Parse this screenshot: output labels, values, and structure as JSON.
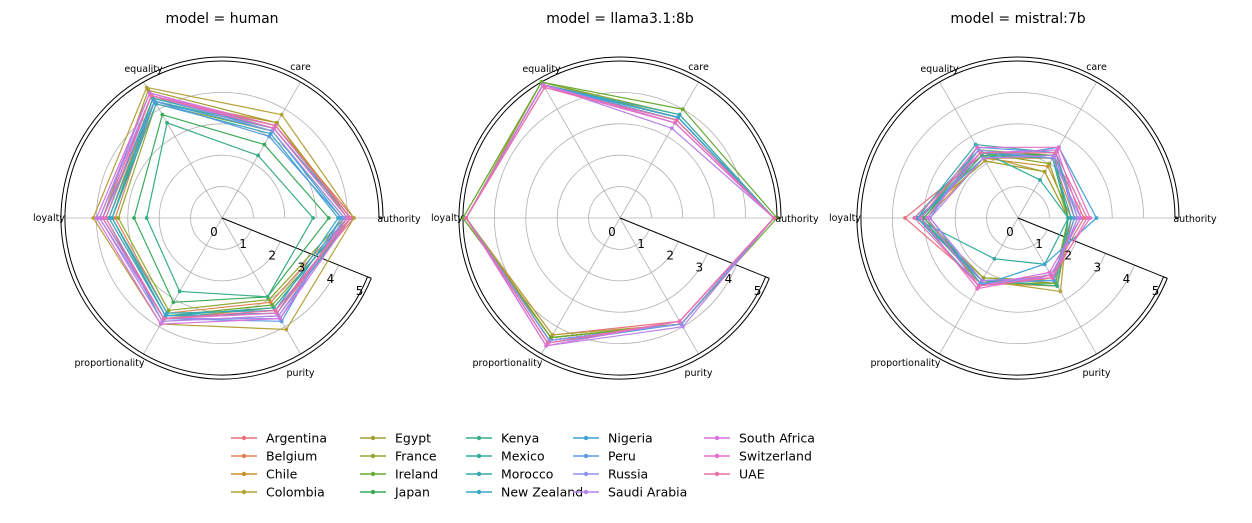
{
  "chart_data": {
    "type": "radar",
    "axes": [
      "authority",
      "care",
      "equality",
      "loyalty",
      "proportionality",
      "purity"
    ],
    "rlim": [
      0,
      5
    ],
    "rticks": [
      "0",
      "1",
      "2",
      "3",
      "4",
      "5"
    ],
    "grid": true,
    "legend_position": "bottom",
    "countries": [
      "Argentina",
      "Belgium",
      "Chile",
      "Colombia",
      "Egypt",
      "France",
      "Ireland",
      "Japan",
      "Kenya",
      "Mexico",
      "Morocco",
      "New Zealand",
      "Nigeria",
      "Peru",
      "Russia",
      "Saudi Arabia",
      "South Africa",
      "Switzerland",
      "UAE"
    ],
    "colors": [
      "#e8727c",
      "#e4814f",
      "#c9902d",
      "#b5a03a",
      "#a39d2e",
      "#8fa830",
      "#6aaa32",
      "#3aab5a",
      "#36ad85",
      "#35ab9d",
      "#37aab0",
      "#38a8c2",
      "#3aa3d4",
      "#5b9be5",
      "#8f92e9",
      "#b882e8",
      "#d872df",
      "#e56fc8",
      "#ea70a9"
    ],
    "panels": [
      {
        "title": "model = human",
        "series": [
          {
            "name": "Argentina",
            "values": [
              4.2,
              3.4,
              4.5,
              3.8,
              3.7,
              3.4
            ]
          },
          {
            "name": "Belgium",
            "values": [
              4.0,
              3.3,
              4.3,
              3.4,
              3.5,
              3.1
            ]
          },
          {
            "name": "Chile",
            "values": [
              4.1,
              3.5,
              4.4,
              3.6,
              3.6,
              3.5
            ]
          },
          {
            "name": "Colombia",
            "values": [
              4.2,
              3.8,
              4.8,
              4.1,
              3.9,
              4.1
            ]
          },
          {
            "name": "Egypt",
            "values": [
              4.0,
              3.5,
              4.7,
              3.8,
              3.7,
              3.3
            ]
          },
          {
            "name": "France",
            "values": [
              3.9,
              3.2,
              4.2,
              3.3,
              3.4,
              3.0
            ]
          },
          {
            "name": "Ireland",
            "values": [
              4.1,
              3.4,
              4.4,
              3.5,
              3.6,
              3.2
            ]
          },
          {
            "name": "Japan",
            "values": [
              3.4,
              2.7,
              3.8,
              2.8,
              3.1,
              2.9
            ]
          },
          {
            "name": "Kenya",
            "values": [
              2.9,
              2.3,
              3.5,
              2.4,
              2.7,
              2.9
            ]
          },
          {
            "name": "Mexico",
            "values": [
              4.0,
              3.3,
              4.3,
              3.5,
              3.6,
              3.3
            ]
          },
          {
            "name": "Morocco",
            "values": [
              4.1,
              3.3,
              4.4,
              3.7,
              3.8,
              3.6
            ]
          },
          {
            "name": "New Zealand",
            "values": [
              3.7,
              3.1,
              4.2,
              3.5,
              3.5,
              3.4
            ]
          },
          {
            "name": "Nigeria",
            "values": [
              3.8,
              3.2,
              4.3,
              3.6,
              3.6,
              3.5
            ]
          },
          {
            "name": "Peru",
            "values": [
              3.8,
              3.0,
              4.3,
              3.8,
              3.7,
              3.8
            ]
          },
          {
            "name": "Russia",
            "values": [
              3.9,
              3.2,
              4.5,
              3.9,
              3.7,
              3.7
            ]
          },
          {
            "name": "Saudi Arabia",
            "values": [
              4.0,
              3.3,
              4.6,
              3.9,
              3.8,
              3.6
            ]
          },
          {
            "name": "South Africa",
            "values": [
              4.1,
              3.4,
              4.6,
              4.0,
              3.9,
              3.7
            ]
          },
          {
            "name": "Switzerland",
            "values": [
              4.0,
              3.3,
              4.5,
              3.8,
              3.7,
              3.5
            ]
          },
          {
            "name": "UAE",
            "values": [
              4.1,
              3.4,
              4.5,
              3.7,
              3.7,
              3.4
            ]
          }
        ]
      },
      {
        "title": "model = llama3.1:8b",
        "series": [
          {
            "name": "Argentina",
            "values": [
              4.9,
              3.6,
              4.9,
              4.9,
              4.3,
              3.8
            ]
          },
          {
            "name": "Belgium",
            "values": [
              4.9,
              3.6,
              4.9,
              4.9,
              4.4,
              3.9
            ]
          },
          {
            "name": "Chile",
            "values": [
              4.9,
              3.7,
              4.9,
              4.9,
              4.4,
              3.9
            ]
          },
          {
            "name": "Colombia",
            "values": [
              4.9,
              3.6,
              4.9,
              4.9,
              4.3,
              3.9
            ]
          },
          {
            "name": "Egypt",
            "values": [
              4.9,
              3.7,
              5.0,
              4.9,
              4.4,
              3.9
            ]
          },
          {
            "name": "France",
            "values": [
              4.9,
              3.8,
              5.0,
              5.0,
              4.4,
              3.9
            ]
          },
          {
            "name": "Ireland",
            "values": [
              5.0,
              4.0,
              5.0,
              5.0,
              4.4,
              3.9
            ]
          },
          {
            "name": "Japan",
            "values": [
              4.9,
              3.7,
              4.9,
              4.9,
              4.5,
              3.9
            ]
          },
          {
            "name": "Kenya",
            "values": [
              4.9,
              3.7,
              4.9,
              4.9,
              4.5,
              3.9
            ]
          },
          {
            "name": "Mexico",
            "values": [
              4.9,
              3.7,
              4.9,
              4.9,
              4.5,
              3.9
            ]
          },
          {
            "name": "Morocco",
            "values": [
              4.9,
              3.8,
              4.9,
              4.9,
              4.5,
              3.9
            ]
          },
          {
            "name": "New Zealand",
            "values": [
              4.9,
              3.7,
              4.9,
              4.9,
              4.5,
              3.9
            ]
          },
          {
            "name": "Nigeria",
            "values": [
              4.9,
              3.7,
              4.9,
              4.9,
              4.6,
              3.9
            ]
          },
          {
            "name": "Peru",
            "values": [
              4.9,
              3.6,
              4.9,
              4.9,
              4.5,
              3.9
            ]
          },
          {
            "name": "Russia",
            "values": [
              4.9,
              3.5,
              4.9,
              4.9,
              4.5,
              3.9
            ]
          },
          {
            "name": "Saudi Arabia",
            "values": [
              4.9,
              3.3,
              4.9,
              4.9,
              4.7,
              4.0
            ]
          },
          {
            "name": "South Africa",
            "values": [
              4.9,
              3.5,
              4.9,
              4.9,
              4.7,
              3.8
            ]
          },
          {
            "name": "Switzerland",
            "values": [
              4.9,
              3.5,
              4.8,
              4.9,
              4.6,
              3.8
            ]
          },
          {
            "name": "UAE",
            "values": [
              4.9,
              3.6,
              4.8,
              4.9,
              4.6,
              3.8
            ]
          }
        ]
      },
      {
        "title": "model = mistral:7b",
        "series": [
          {
            "name": "Argentina",
            "values": [
              2.1,
              2.3,
              2.3,
              3.6,
              2.4,
              2.1
            ]
          },
          {
            "name": "Belgium",
            "values": [
              1.8,
              2.2,
              2.2,
              3.2,
              2.3,
              2.2
            ]
          },
          {
            "name": "Chile",
            "values": [
              1.7,
              1.9,
              2.2,
              2.9,
              2.4,
              2.5
            ]
          },
          {
            "name": "Colombia",
            "values": [
              1.6,
              1.7,
              2.3,
              3.0,
              2.3,
              2.7
            ]
          },
          {
            "name": "Egypt",
            "values": [
              1.6,
              1.7,
              2.1,
              3.2,
              2.2,
              2.4
            ]
          },
          {
            "name": "France",
            "values": [
              1.6,
              2.0,
              2.4,
              3.0,
              2.2,
              2.3
            ]
          },
          {
            "name": "Ireland",
            "values": [
              1.6,
              2.3,
              2.5,
              3.1,
              2.4,
              2.4
            ]
          },
          {
            "name": "Japan",
            "values": [
              1.6,
              2.3,
              2.4,
              3.0,
              2.3,
              2.5
            ]
          },
          {
            "name": "Kenya",
            "values": [
              1.6,
              2.2,
              2.3,
              3.1,
              2.3,
              2.5
            ]
          },
          {
            "name": "Mexico",
            "values": [
              1.6,
              1.4,
              2.5,
              3.3,
              1.5,
              1.7
            ]
          },
          {
            "name": "Morocco",
            "values": [
              1.9,
              2.4,
              2.7,
              3.2,
              2.3,
              2.2
            ]
          },
          {
            "name": "New Zealand",
            "values": [
              1.7,
              2.2,
              2.4,
              3.1,
              2.3,
              2.3
            ]
          },
          {
            "name": "Nigeria",
            "values": [
              2.5,
              2.6,
              2.2,
              3.2,
              2.5,
              1.7
            ]
          },
          {
            "name": "Peru",
            "values": [
              1.8,
              2.4,
              2.6,
              2.8,
              2.4,
              2.3
            ]
          },
          {
            "name": "Russia",
            "values": [
              2.0,
              2.2,
              2.5,
              2.9,
              2.5,
              2.1
            ]
          },
          {
            "name": "Saudi Arabia",
            "values": [
              1.9,
              2.3,
              2.2,
              2.8,
              2.3,
              2.2
            ]
          },
          {
            "name": "South Africa",
            "values": [
              2.0,
              2.5,
              2.4,
              2.9,
              2.5,
              2.0
            ]
          },
          {
            "name": "Switzerland",
            "values": [
              2.3,
              2.6,
              2.6,
              3.1,
              2.6,
              2.1
            ]
          },
          {
            "name": "UAE",
            "values": [
              2.2,
              2.4,
              2.4,
              3.3,
              2.5,
              2.2
            ]
          }
        ]
      }
    ]
  }
}
